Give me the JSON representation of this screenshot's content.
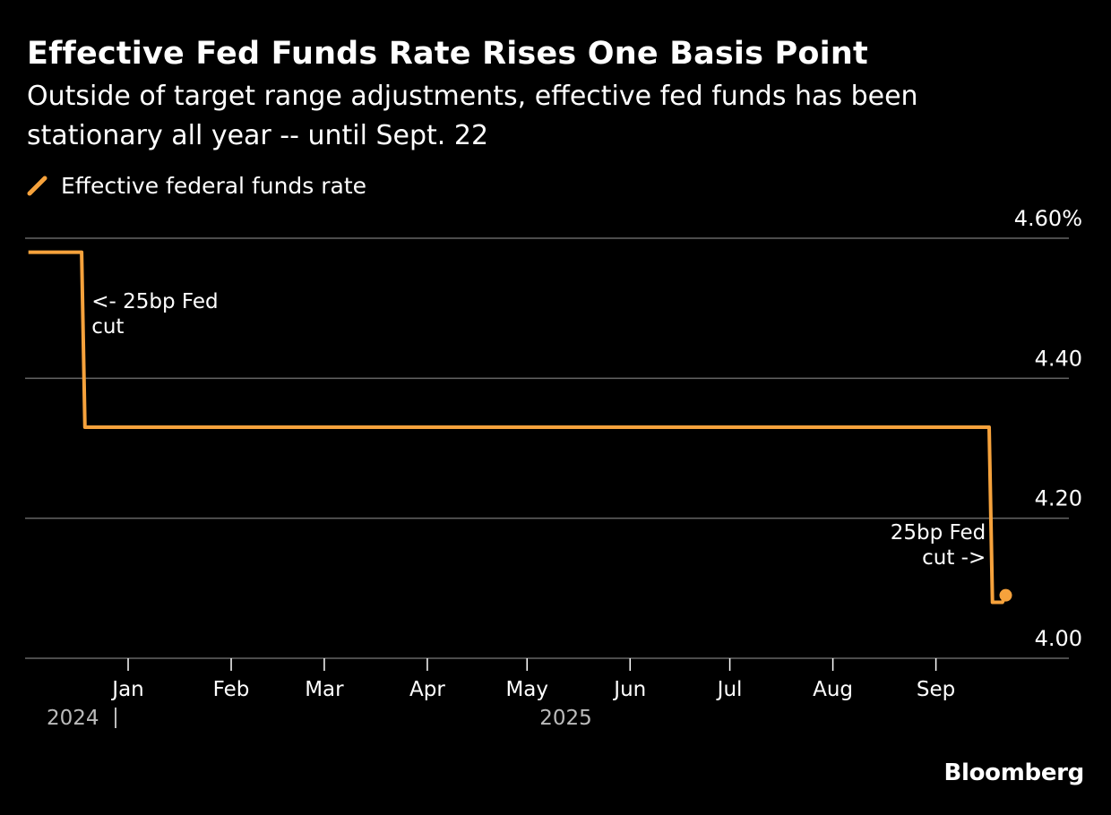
{
  "colors": {
    "background": "#000000",
    "series": "#F6A23C",
    "grid": "#666666",
    "text": "#FFFFFF",
    "muted": "#BBBBBB"
  },
  "chart_data": {
    "type": "line",
    "title": "Effective Fed Funds Rate Rises One Basis Point",
    "subtitle": "Outside of target range adjustments, effective fed funds has been stationary all year -- until Sept. 22",
    "xlabel": "",
    "ylabel": "",
    "source": "Bloomberg",
    "legend": "top-left",
    "grid": true,
    "ylim": [
      4.0,
      4.6
    ],
    "y_ticks": [
      {
        "value": 4.6,
        "label": "4.60%"
      },
      {
        "value": 4.4,
        "label": "4.40"
      },
      {
        "value": 4.2,
        "label": "4.20"
      },
      {
        "value": 4.0,
        "label": "4.00"
      }
    ],
    "xlim": [
      "2024-12-01",
      "2025-10-11"
    ],
    "x_ticks": [
      {
        "date": "2025-01-01",
        "label": "Jan"
      },
      {
        "date": "2025-02-01",
        "label": "Feb"
      },
      {
        "date": "2025-03-01",
        "label": "Mar"
      },
      {
        "date": "2025-04-01",
        "label": "Apr"
      },
      {
        "date": "2025-05-01",
        "label": "May"
      },
      {
        "date": "2025-06-01",
        "label": "Jun"
      },
      {
        "date": "2025-07-01",
        "label": "Jul"
      },
      {
        "date": "2025-08-01",
        "label": "Aug"
      },
      {
        "date": "2025-09-01",
        "label": "Sep"
      }
    ],
    "year_labels": [
      {
        "date": "2024-12-01",
        "label": "2024",
        "divider": true
      },
      {
        "date": "2025-05-01",
        "label": "2025",
        "divider": false
      }
    ],
    "series": [
      {
        "name": "Effective federal funds rate",
        "points": [
          {
            "x": "2024-12-02",
            "y": 4.58
          },
          {
            "x": "2024-12-18",
            "y": 4.58
          },
          {
            "x": "2024-12-19",
            "y": 4.33
          },
          {
            "x": "2025-09-17",
            "y": 4.33
          },
          {
            "x": "2025-09-18",
            "y": 4.08
          },
          {
            "x": "2025-09-21",
            "y": 4.08
          },
          {
            "x": "2025-09-22",
            "y": 4.09
          }
        ],
        "end_marker": true
      }
    ],
    "annotations": [
      {
        "lines": [
          "<- 25bp Fed",
          "cut"
        ],
        "x": "2024-12-21",
        "y": 4.5,
        "anchor": "start"
      },
      {
        "lines": [
          "25bp Fed",
          "cut ->"
        ],
        "x": "2025-09-16",
        "y": 4.17,
        "anchor": "end"
      }
    ]
  }
}
